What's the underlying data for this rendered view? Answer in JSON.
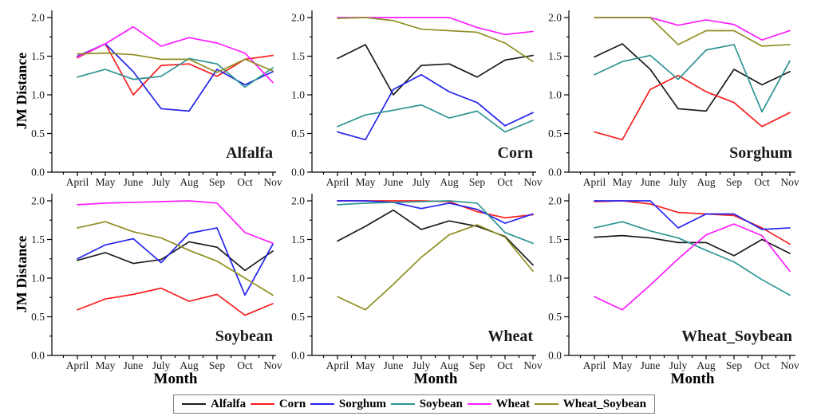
{
  "figure": {
    "ylabel": "JM Distance",
    "xlabel": "Month",
    "months": [
      "April",
      "May",
      "June",
      "July",
      "Aug",
      "Sep",
      "Oct",
      "Nov"
    ],
    "y_tick_labels": [
      "0.0",
      "0.5",
      "1.0",
      "1.5",
      "2.0"
    ],
    "ylim": [
      0.0,
      2.1
    ],
    "grid": "off",
    "legend_position": "bottom-center"
  },
  "legend": {
    "entries": [
      {
        "label": "Alfalfa",
        "color": "#1c1c1c"
      },
      {
        "label": "Corn",
        "color": "#f81e1e"
      },
      {
        "label": "Sorghum",
        "color": "#2424ee"
      },
      {
        "label": "Soybean",
        "color": "#2e9494"
      },
      {
        "label": "Wheat",
        "color": "#ff1cff"
      },
      {
        "label": "Wheat_Soybean",
        "color": "#8f8f22"
      }
    ]
  },
  "chart_data": [
    {
      "type": "line",
      "title": "Alfalfa",
      "series": [
        {
          "name": "Corn",
          "values": [
            1.48,
            1.66,
            1.0,
            1.38,
            1.4,
            1.24,
            1.46,
            1.51
          ]
        },
        {
          "name": "Sorghum",
          "values": [
            1.5,
            1.66,
            1.3,
            0.82,
            0.79,
            1.33,
            1.13,
            1.3
          ]
        },
        {
          "name": "Soybean",
          "values": [
            1.23,
            1.33,
            1.2,
            1.24,
            1.47,
            1.4,
            1.1,
            1.35
          ]
        },
        {
          "name": "Wheat",
          "values": [
            1.49,
            1.66,
            1.88,
            1.63,
            1.74,
            1.67,
            1.54,
            1.16
          ]
        },
        {
          "name": "Wheat_Soybean",
          "values": [
            1.53,
            1.54,
            1.52,
            1.46,
            1.46,
            1.29,
            1.46,
            1.31
          ]
        }
      ]
    },
    {
      "type": "line",
      "title": "Corn",
      "series": [
        {
          "name": "Alfalfa",
          "values": [
            1.47,
            1.65,
            1.0,
            1.38,
            1.4,
            1.23,
            1.45,
            1.51
          ]
        },
        {
          "name": "Sorghum",
          "values": [
            0.52,
            0.42,
            1.07,
            1.26,
            1.04,
            0.9,
            0.6,
            0.77
          ]
        },
        {
          "name": "Soybean",
          "values": [
            0.59,
            0.74,
            0.8,
            0.87,
            0.7,
            0.79,
            0.52,
            0.67
          ]
        },
        {
          "name": "Wheat",
          "values": [
            2.0,
            2.0,
            2.0,
            2.0,
            2.0,
            1.87,
            1.78,
            1.82
          ]
        },
        {
          "name": "Wheat_Soybean",
          "values": [
            1.99,
            2.0,
            1.96,
            1.85,
            1.83,
            1.81,
            1.67,
            1.43
          ]
        }
      ]
    },
    {
      "type": "line",
      "title": "Sorghum",
      "series": [
        {
          "name": "Alfalfa",
          "values": [
            1.49,
            1.66,
            1.33,
            0.82,
            0.79,
            1.33,
            1.13,
            1.3
          ]
        },
        {
          "name": "Corn",
          "values": [
            0.52,
            0.42,
            1.07,
            1.25,
            1.04,
            0.9,
            0.59,
            0.77
          ]
        },
        {
          "name": "Soybean",
          "values": [
            1.26,
            1.43,
            1.51,
            1.2,
            1.58,
            1.65,
            0.78,
            1.44
          ]
        },
        {
          "name": "Wheat",
          "values": [
            2.0,
            2.0,
            2.0,
            1.9,
            1.97,
            1.91,
            1.71,
            1.83
          ]
        },
        {
          "name": "Wheat_Soybean",
          "values": [
            2.0,
            2.0,
            2.0,
            1.65,
            1.83,
            1.83,
            1.63,
            1.65
          ]
        }
      ]
    },
    {
      "type": "line",
      "title": "Soybean",
      "series": [
        {
          "name": "Alfalfa",
          "values": [
            1.23,
            1.33,
            1.19,
            1.24,
            1.47,
            1.4,
            1.1,
            1.35
          ]
        },
        {
          "name": "Corn",
          "values": [
            0.59,
            0.73,
            0.79,
            0.87,
            0.7,
            0.79,
            0.52,
            0.67
          ]
        },
        {
          "name": "Sorghum",
          "values": [
            1.25,
            1.43,
            1.51,
            1.2,
            1.58,
            1.65,
            0.78,
            1.44
          ]
        },
        {
          "name": "Wheat",
          "values": [
            1.95,
            1.97,
            1.98,
            1.99,
            2.0,
            1.97,
            1.59,
            1.45
          ]
        },
        {
          "name": "Wheat_Soybean",
          "values": [
            1.65,
            1.73,
            1.6,
            1.52,
            1.36,
            1.22,
            1.0,
            0.78
          ]
        }
      ]
    },
    {
      "type": "line",
      "title": "Wheat",
      "series": [
        {
          "name": "Alfalfa",
          "values": [
            1.48,
            1.67,
            1.88,
            1.63,
            1.74,
            1.67,
            1.54,
            1.17
          ]
        },
        {
          "name": "Corn",
          "values": [
            2.0,
            2.0,
            2.0,
            2.0,
            1.99,
            1.86,
            1.78,
            1.82
          ]
        },
        {
          "name": "Sorghum",
          "values": [
            2.0,
            2.0,
            1.98,
            1.9,
            1.97,
            1.89,
            1.71,
            1.83
          ]
        },
        {
          "name": "Soybean",
          "values": [
            1.95,
            1.97,
            1.98,
            1.99,
            2.0,
            1.97,
            1.59,
            1.45
          ]
        },
        {
          "name": "Wheat_Soybean",
          "values": [
            0.76,
            0.59,
            0.92,
            1.27,
            1.56,
            1.69,
            1.53,
            1.09
          ]
        }
      ]
    },
    {
      "type": "line",
      "title": "Wheat_Soybean",
      "series": [
        {
          "name": "Alfalfa",
          "values": [
            1.53,
            1.55,
            1.52,
            1.46,
            1.46,
            1.29,
            1.5,
            1.32
          ]
        },
        {
          "name": "Corn",
          "values": [
            1.99,
            2.0,
            1.96,
            1.85,
            1.83,
            1.81,
            1.65,
            1.44
          ]
        },
        {
          "name": "Sorghum",
          "values": [
            2.0,
            2.0,
            2.0,
            1.65,
            1.83,
            1.83,
            1.63,
            1.65
          ]
        },
        {
          "name": "Soybean",
          "values": [
            1.65,
            1.73,
            1.61,
            1.52,
            1.36,
            1.21,
            0.98,
            0.78
          ]
        },
        {
          "name": "Wheat",
          "values": [
            0.76,
            0.59,
            0.91,
            1.25,
            1.56,
            1.7,
            1.55,
            1.09
          ]
        }
      ]
    }
  ]
}
